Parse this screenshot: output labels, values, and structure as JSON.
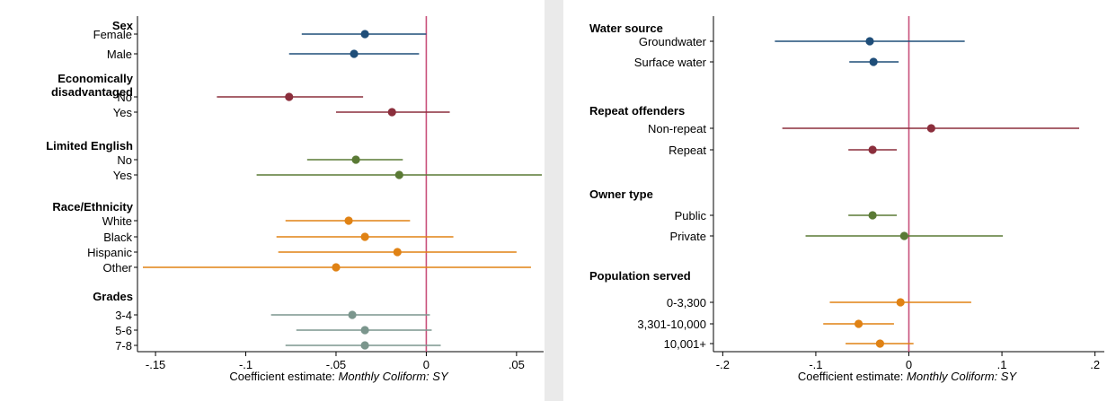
{
  "colors": {
    "navy": "#1f4e79",
    "maroon": "#8b2e3c",
    "olive": "#5a7a35",
    "orange": "#e08214",
    "sage": "#7b968d",
    "zero_line": "#c8507a",
    "panel_bg": "#ffffff",
    "page_bg": "#eaeaea"
  },
  "chart_data": [
    {
      "type": "scatter",
      "subtype": "coefficient-plot",
      "xlabel_prefix": "Coefficient estimate: ",
      "xlabel_italic": "Monthly Coliform: SY",
      "xlim": [
        -0.16,
        0.065
      ],
      "xticks": [
        -0.15,
        -0.1,
        -0.05,
        0,
        0.05
      ],
      "xtick_labels": [
        "-.15",
        "-.1",
        "-.05",
        "0",
        ".05"
      ],
      "reference_line": 0,
      "grid": false,
      "groups": [
        {
          "header_lines": [
            "Sex"
          ],
          "color": "navy",
          "rows": [
            {
              "label": "Female",
              "estimate": -0.034,
              "ci": [
                -0.069,
                0.0
              ]
            },
            {
              "label": "Male",
              "estimate": -0.04,
              "ci": [
                -0.076,
                -0.004
              ]
            }
          ]
        },
        {
          "header_lines": [
            "Economically",
            "disadvantaged"
          ],
          "color": "maroon",
          "rows": [
            {
              "label": "No",
              "estimate": -0.076,
              "ci": [
                -0.116,
                -0.035
              ]
            },
            {
              "label": "Yes",
              "estimate": -0.019,
              "ci": [
                -0.05,
                0.013
              ]
            }
          ]
        },
        {
          "header_lines": [
            "Limited English"
          ],
          "color": "olive",
          "rows": [
            {
              "label": "No",
              "estimate": -0.039,
              "ci": [
                -0.066,
                -0.013
              ]
            },
            {
              "label": "Yes",
              "estimate": -0.015,
              "ci": [
                -0.094,
                0.064
              ]
            }
          ]
        },
        {
          "header_lines": [
            "Race/Ethnicity"
          ],
          "color": "orange",
          "rows": [
            {
              "label": "White",
              "estimate": -0.043,
              "ci": [
                -0.078,
                -0.009
              ]
            },
            {
              "label": "Black",
              "estimate": -0.034,
              "ci": [
                -0.083,
                0.015
              ]
            },
            {
              "label": "Hispanic",
              "estimate": -0.016,
              "ci": [
                -0.082,
                0.05
              ]
            },
            {
              "label": "Other",
              "estimate": -0.05,
              "ci": [
                -0.157,
                0.058
              ]
            }
          ]
        },
        {
          "header_lines": [
            "Grades"
          ],
          "color": "sage",
          "rows": [
            {
              "label": "3-4",
              "estimate": -0.041,
              "ci": [
                -0.086,
                0.002
              ]
            },
            {
              "label": "5-6",
              "estimate": -0.034,
              "ci": [
                -0.072,
                0.003
              ]
            },
            {
              "label": "7-8",
              "estimate": -0.034,
              "ci": [
                -0.078,
                0.008
              ]
            }
          ]
        }
      ]
    },
    {
      "type": "scatter",
      "subtype": "coefficient-plot",
      "xlabel_prefix": "Coefficient estimate: ",
      "xlabel_italic": "Monthly Coliform: SY",
      "xlim": [
        -0.21,
        0.21
      ],
      "xticks": [
        -0.2,
        -0.1,
        0,
        0.1,
        0.2
      ],
      "xtick_labels": [
        "-.2",
        "-.1",
        "0",
        ".1",
        ".2"
      ],
      "reference_line": 0,
      "grid": false,
      "groups": [
        {
          "header_lines": [
            "Water source"
          ],
          "color": "navy",
          "rows": [
            {
              "label": "Groundwater",
              "estimate": -0.042,
              "ci": [
                -0.144,
                0.06
              ]
            },
            {
              "label": "Surface water",
              "estimate": -0.038,
              "ci": [
                -0.064,
                -0.011
              ]
            }
          ]
        },
        {
          "header_lines": [
            "Repeat offenders"
          ],
          "color": "maroon",
          "rows": [
            {
              "label": "Non-repeat",
              "estimate": 0.024,
              "ci": [
                -0.136,
                0.183
              ]
            },
            {
              "label": "Repeat",
              "estimate": -0.039,
              "ci": [
                -0.065,
                -0.013
              ]
            }
          ]
        },
        {
          "header_lines": [
            "Owner type"
          ],
          "color": "olive",
          "rows": [
            {
              "label": "Public",
              "estimate": -0.039,
              "ci": [
                -0.065,
                -0.013
              ]
            },
            {
              "label": "Private",
              "estimate": -0.005,
              "ci": [
                -0.111,
                0.101
              ]
            }
          ]
        },
        {
          "header_lines": [
            "Population served"
          ],
          "color": "orange",
          "rows": [
            {
              "label": "0-3,300",
              "estimate": -0.009,
              "ci": [
                -0.085,
                0.067
              ]
            },
            {
              "label": "3,301-10,000",
              "estimate": -0.054,
              "ci": [
                -0.092,
                -0.016
              ]
            },
            {
              "label": "10,001+",
              "estimate": -0.031,
              "ci": [
                -0.068,
                0.005
              ]
            }
          ]
        }
      ]
    }
  ]
}
